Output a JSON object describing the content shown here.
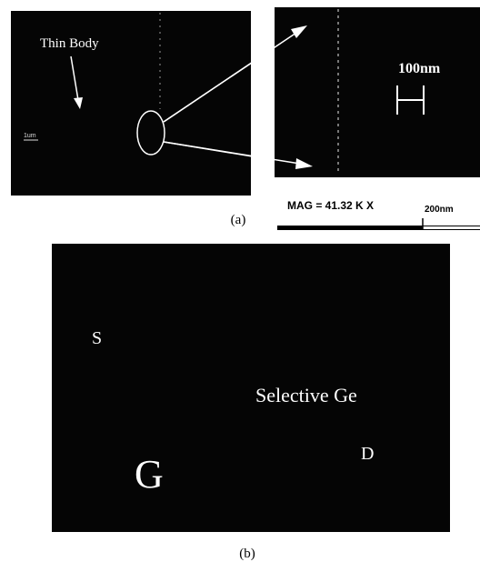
{
  "figure": {
    "panel_a": {
      "left_image": {
        "label": "Thin Body",
        "scale_label": "1um"
      },
      "right_image": {
        "scale_label": "100nm",
        "magnification": "MAG = 41.32 K X",
        "scale_bar_label": "200nm"
      },
      "caption": "(a)"
    },
    "panel_b": {
      "labels": {
        "source": "S",
        "region": "Selective Ge",
        "gate": "G",
        "drain": "D"
      },
      "caption": "(b)"
    }
  }
}
